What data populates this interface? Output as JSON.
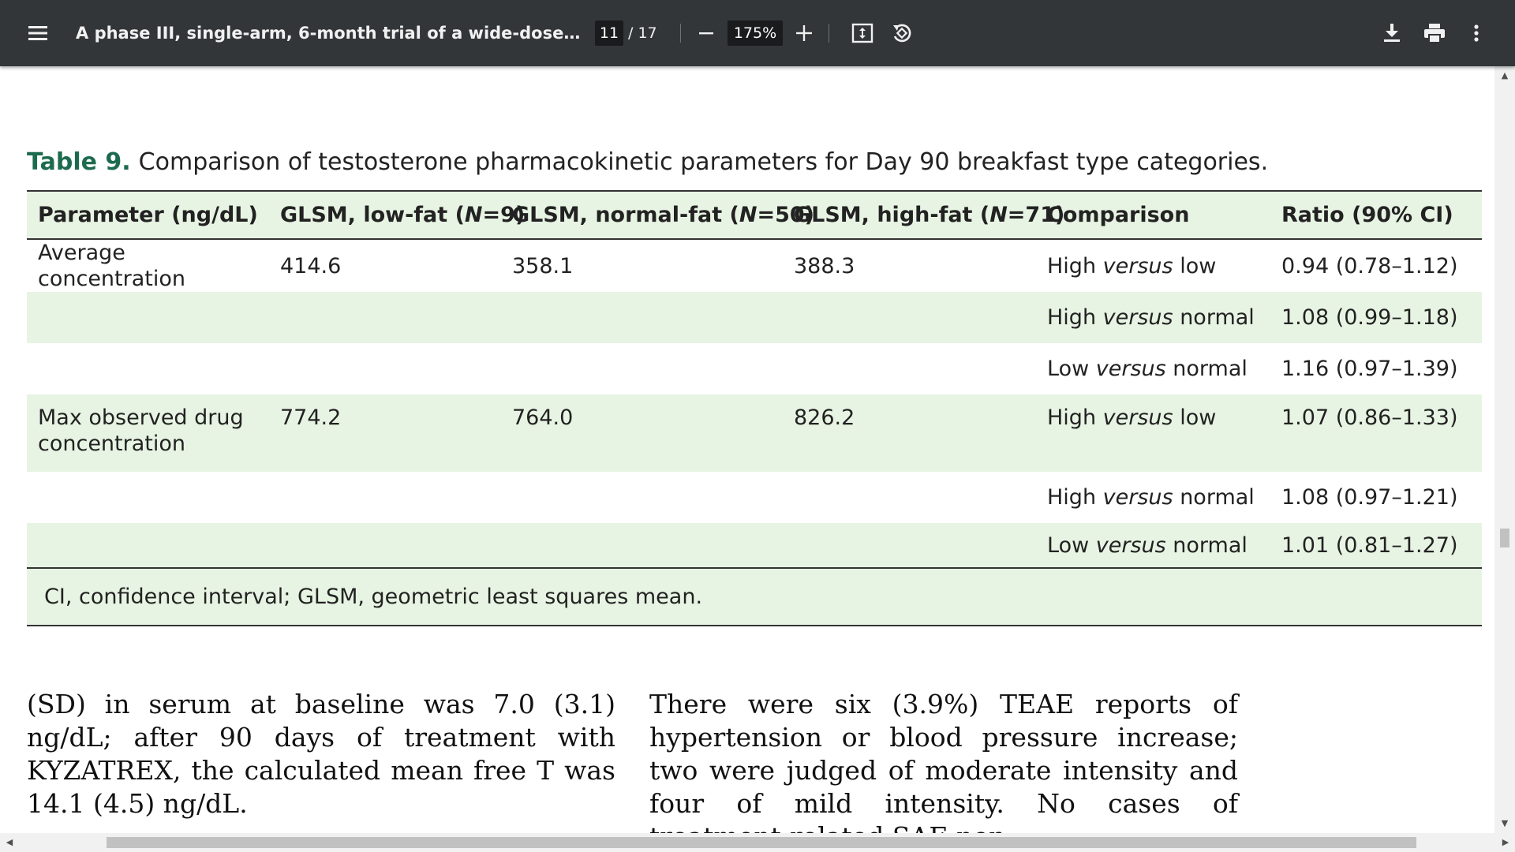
{
  "toolbar": {
    "title": "A phase III, single-arm, 6-month trial of a wide-dose range oral t...",
    "current_page": "11",
    "page_total": "/ 17",
    "zoom": "175%",
    "icons": [
      "menu-icon",
      "zoom-out-icon",
      "zoom-in-icon",
      "fit-to-page-icon",
      "rotate-icon",
      "download-icon",
      "print-icon",
      "more-vert-icon"
    ]
  },
  "table": {
    "caption_label": "Table 9.",
    "caption_text": "Comparison of testosterone pharmacokinetic parameters for Day 90 breakfast type categories.",
    "headers": {
      "parameter": "Parameter (ng/dL)",
      "low_pre": "GLSM, low-fat (",
      "low_n": "9",
      "normal_pre": "GLSM, normal-fat (",
      "normal_n": "50",
      "high_pre": "GLSM, high-fat (",
      "high_n": "71",
      "n_symbol": "N",
      "eq": "=",
      "close": ")",
      "comparison": "Comparison",
      "ratio": "Ratio (90% CI)"
    },
    "versus": "versus",
    "rows": [
      {
        "parameter": "Average concentration",
        "low": "414.6",
        "normal": "358.1",
        "high": "388.3",
        "comp_a": "High",
        "comp_b": "low",
        "ratio": "0.94 (0.78–1.12)"
      },
      {
        "parameter": "",
        "low": "",
        "normal": "",
        "high": "",
        "comp_a": "High",
        "comp_b": "normal",
        "ratio": "1.08 (0.99–1.18)"
      },
      {
        "parameter": "",
        "low": "",
        "normal": "",
        "high": "",
        "comp_a": "Low",
        "comp_b": "normal",
        "ratio": "1.16 (0.97–1.39)"
      },
      {
        "parameter": "Max observed drug concentration",
        "low": "774.2",
        "normal": "764.0",
        "high": "826.2",
        "comp_a": "High",
        "comp_b": "low",
        "ratio": "1.07 (0.86–1.33)"
      },
      {
        "parameter": "",
        "low": "",
        "normal": "",
        "high": "",
        "comp_a": "High",
        "comp_b": "normal",
        "ratio": "1.08 (0.97–1.21)"
      },
      {
        "parameter": "",
        "low": "",
        "normal": "",
        "high": "",
        "comp_a": "Low",
        "comp_b": "normal",
        "ratio": "1.01 (0.81–1.27)"
      }
    ],
    "footnote": "CI, confidence interval; GLSM, geometric least squares mean."
  },
  "body": {
    "left_column": "(SD) in serum at baseline was 7.0 (3.1) ng/dL; after 90 days of treatment with KYZATREX, the calculated mean free T was 14.1 (4.5) ng/dL.",
    "right_column": "There were six (3.9%) TEAE reports of hyper­tension or blood pressure increase; two were judged of moderate intensity and four of mild intensity. No cases of treatment-related SAE nor"
  },
  "colors": {
    "toolbar_bg": "#323639",
    "table_shade": "#e8f4e3",
    "caption_accent": "#1d6b4f"
  }
}
